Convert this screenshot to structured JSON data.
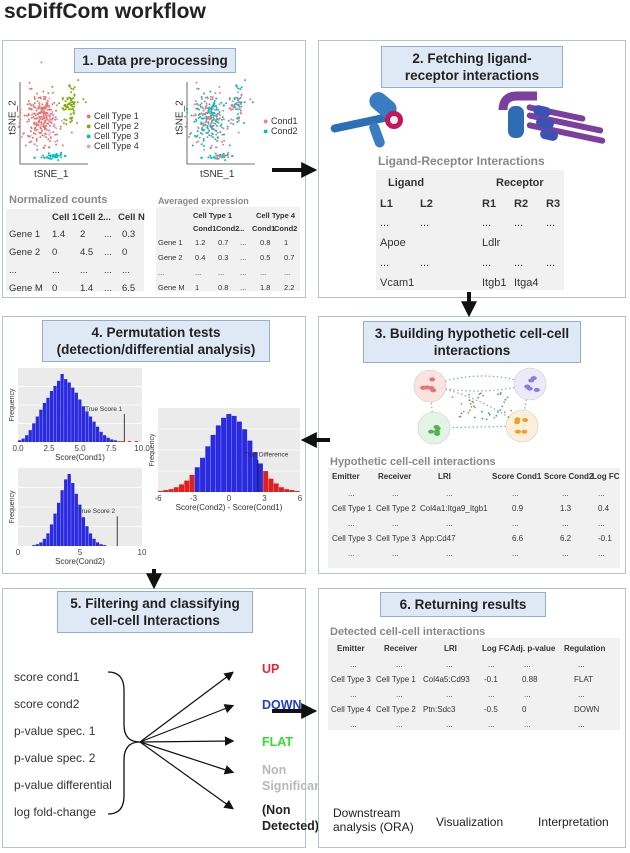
{
  "title": "scDiffCom workflow",
  "panels": {
    "p1": {
      "title": "1. Data pre-processing",
      "tsne_xlabel": "tSNE_1",
      "tsne_ylabel": "tSNE_2",
      "cell_types": [
        "Cell Type 1",
        "Cell Type 2",
        "Cell Type 3",
        "Cell Type 4"
      ],
      "conditions": [
        "Cond1",
        "Cond2"
      ],
      "colors": {
        "ct1": "#e8736c",
        "ct2": "#7cae00",
        "ct3": "#00bfc4",
        "ct4": "#e39fc6",
        "cond1": "#f08080",
        "cond2": "#00bfc4"
      },
      "norm_title": "Normalized counts",
      "norm_header": [
        "Cell 1",
        "Cell 2",
        "...",
        "Cell N"
      ],
      "norm_rows": [
        [
          "Gene 1",
          "1.4",
          "2",
          "...",
          "0.3"
        ],
        [
          "Gene 2",
          "0",
          "4.5",
          "...",
          "0"
        ],
        [
          "...",
          "...",
          "...",
          "...",
          "..."
        ],
        [
          "Gene M",
          "0",
          "1.4",
          "...",
          "6.5"
        ]
      ],
      "avg_title": "Averaged expression",
      "avg_header1": [
        "Cell Type 1",
        "Cell Type 4"
      ],
      "avg_header2": [
        "Cond1",
        "Cond2",
        "...",
        "Cond1",
        "Cond2"
      ],
      "avg_rows": [
        [
          "Gene 1",
          "1.2",
          "0.7",
          "...",
          "0.8",
          "1"
        ],
        [
          "Gene 2",
          "0.4",
          "0.3",
          "...",
          "0.5",
          "0.7"
        ],
        [
          "...",
          "...",
          "...",
          "...",
          "...",
          "..."
        ],
        [
          "Gene M",
          "1",
          "0.8",
          "...",
          "1.8",
          "2.2"
        ]
      ]
    },
    "p2": {
      "title": "2. Fetching ligand-receptor interactions",
      "lri_title": "Ligand-Receptor Interactions",
      "ligand": "Ligand",
      "receptor": "Receptor",
      "cols": [
        "L1",
        "L2",
        "R1",
        "R2",
        "R3"
      ],
      "rows": [
        [
          "...",
          "...",
          "...",
          "...",
          "..."
        ],
        [
          "Apoe",
          "",
          "Ldlr",
          "",
          ""
        ],
        [
          "...",
          "...",
          "...",
          "...",
          "..."
        ],
        [
          "Vcam1",
          "",
          "Itgb1",
          "Itga4",
          ""
        ]
      ]
    },
    "p3": {
      "title": "3. Building hypothetic cell-cell interactions",
      "tbl_title": "Hypothetic cell-cell interactions",
      "header": [
        "Emitter",
        "Receiver",
        "LRI",
        "Score Cond1",
        "Score Cond2",
        "Log FC"
      ],
      "rows": [
        [
          "...",
          "...",
          "...",
          "...",
          "...",
          "..."
        ],
        [
          "Cell Type 1",
          "Cell Type 2",
          "Col4a1:Itga9_Itgb1",
          "0.9",
          "1.3",
          "0.4"
        ],
        [
          "...",
          "...",
          "...",
          "...",
          "...",
          "..."
        ],
        [
          "Cell Type 3",
          "Cell Type 3",
          "App:Cd47",
          "6.6",
          "6.2",
          "-0.1"
        ],
        [
          "...",
          "...",
          "...",
          "...",
          "...",
          "..."
        ]
      ]
    },
    "p4": {
      "title": "4. Permutation tests (detection/differential analysis)",
      "ylabel": "Frequency",
      "h1": {
        "xlabel": "Score(Cond1)",
        "ticks": [
          "0.0",
          "2.5",
          "5.0",
          "7.5",
          "10.0"
        ],
        "annot": "True Score 1"
      },
      "h2": {
        "xlabel": "Score(Cond2)",
        "ticks": [
          "0",
          "5",
          "10"
        ],
        "annot": "True Score 2"
      },
      "h3": {
        "xlabel": "Score(Cond2) - Score(Cond1)",
        "ticks": [
          "-6",
          "-3",
          "0",
          "3",
          "6"
        ],
        "annot": "True Difference"
      }
    },
    "p5": {
      "title": "5. Filtering and classifying cell-cell Interactions",
      "features": [
        "score cond1",
        "score cond2",
        "p-value spec. 1",
        "p-value spec. 2",
        "p-value differential",
        "log fold-change"
      ],
      "classes": [
        {
          "label": "UP",
          "color": "#e8253b"
        },
        {
          "label": "DOWN",
          "color": "#1f3fd1"
        },
        {
          "label": "FLAT",
          "color": "#2ee02e"
        },
        {
          "label": "Non Significant",
          "color": "#b8b8b8"
        },
        {
          "label": "(Non Detected)",
          "color": "#222222"
        }
      ]
    },
    "p6": {
      "title": "6. Returning results",
      "tbl_title": "Detected cell-cell interactions",
      "header": [
        "Emitter",
        "Receiver",
        "LRI",
        "Log FC",
        "Adj. p-value",
        "Regulation"
      ],
      "rows": [
        [
          "...",
          "...",
          "...",
          "...",
          "...",
          "..."
        ],
        [
          "Cell Type 3",
          "Cell Type 1",
          "Col4a5:Cd93",
          "-0.1",
          "0.88",
          "FLAT"
        ],
        [
          "...",
          "...",
          "...",
          "...",
          "...",
          "..."
        ],
        [
          "Cell Type 4",
          "Cell Type 2",
          "Ptn:Sdc3",
          "-0.5",
          "0",
          "DOWN"
        ],
        [
          "...",
          "...",
          "...",
          "...",
          "...",
          "..."
        ]
      ],
      "outputs": [
        "Downstream analysis (ORA)",
        "Visualization",
        "Interpretation"
      ]
    }
  }
}
